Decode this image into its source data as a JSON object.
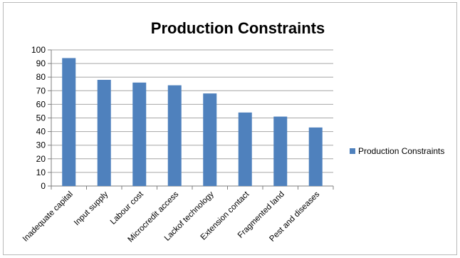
{
  "chart_data": {
    "type": "bar",
    "title": "Production Constraints",
    "categories": [
      "Inadequate capital",
      "Input supply",
      "Labour cost",
      "Microcredit access",
      "Lackof technology",
      "Extension contact",
      "Fragmented land",
      "Pest and diseases"
    ],
    "series": [
      {
        "name": "Production Constraints",
        "values": [
          94,
          78,
          76,
          74,
          68,
          54,
          51,
          43
        ],
        "color": "#4f81bd"
      }
    ],
    "ylim": [
      0,
      100
    ],
    "yticks": [
      0,
      10,
      20,
      30,
      40,
      50,
      60,
      70,
      80,
      90,
      100
    ],
    "xlabel": "",
    "ylabel": "",
    "grid": true,
    "legend_position": "right"
  }
}
